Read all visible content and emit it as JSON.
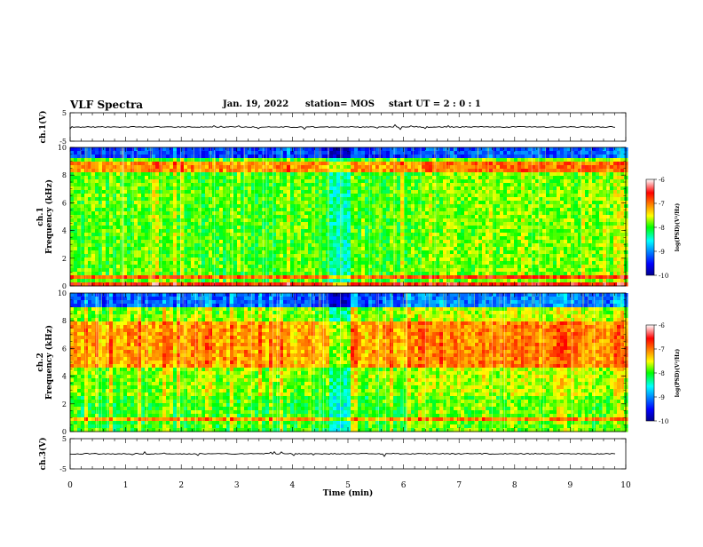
{
  "header": {
    "title": "VLF Spectra",
    "date": "Jan. 19, 2022",
    "station": "station= MOS",
    "start_ut": "start UT =  2 : 0 : 1"
  },
  "chart_data": [
    {
      "type": "line",
      "ylabel": "ch.1(V)",
      "ylim": [
        -5,
        5
      ],
      "y_ticks": [
        "5",
        "-5"
      ],
      "xlim": [
        0,
        10
      ],
      "description_value": 0
    },
    {
      "type": "heatmap",
      "ylabel_lines": [
        "ch.1",
        "Frequency (kHz)"
      ],
      "ylim": [
        0,
        10
      ],
      "y_ticks": [
        "0",
        "2",
        "4",
        "6",
        "8",
        "10"
      ],
      "xlim": [
        0,
        10
      ],
      "colorbar": {
        "label": "log(PSD)(V²/Hz)",
        "range": [
          -10,
          -6
        ],
        "ticks": [
          "-6",
          "-7",
          "-8",
          "-9",
          "-10"
        ],
        "colormap": "jet"
      }
    },
    {
      "type": "heatmap",
      "ylabel_lines": [
        "ch.2",
        "Frequency (kHz)"
      ],
      "ylim": [
        0,
        10
      ],
      "y_ticks": [
        "0",
        "2",
        "4",
        "6",
        "8",
        "10"
      ],
      "xlim": [
        0,
        10
      ],
      "colorbar": {
        "label": "log(PSD)(V²/Hz)",
        "range": [
          -10,
          -6
        ],
        "ticks": [
          "-6",
          "-7",
          "-8",
          "-9",
          "-10"
        ],
        "colormap": "jet"
      }
    },
    {
      "type": "line",
      "ylabel": "ch.3(V)",
      "ylim": [
        -5,
        5
      ],
      "y_ticks": [
        "5",
        "-5"
      ],
      "xlim": [
        0,
        10
      ]
    }
  ],
  "x_axis": {
    "label": "Time (min)",
    "ticks": [
      "0",
      "1",
      "2",
      "3",
      "4",
      "5",
      "6",
      "7",
      "8",
      "9",
      "10"
    ]
  },
  "colors": {
    "axis": "#000000",
    "background": "#ffffff"
  }
}
